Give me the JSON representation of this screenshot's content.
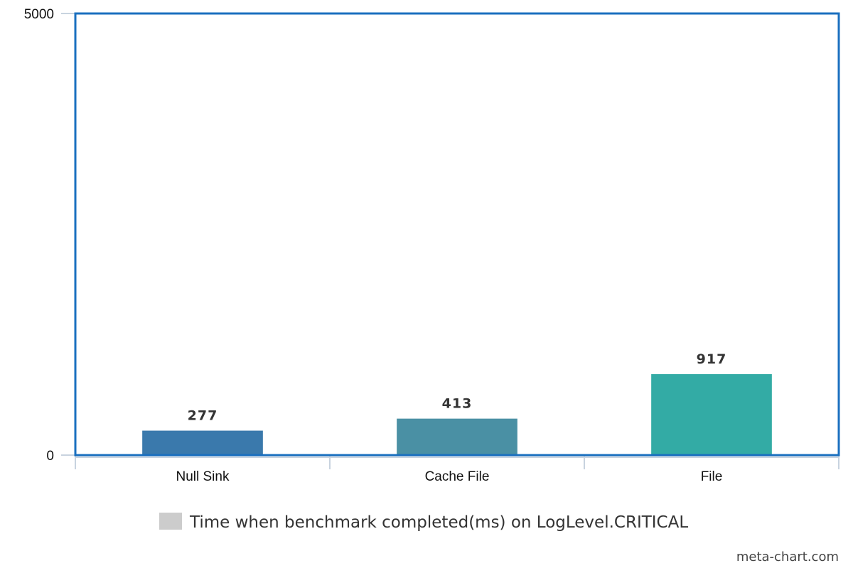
{
  "chart_data": {
    "type": "bar",
    "categories": [
      "Null Sink",
      "Cache File",
      "File"
    ],
    "series": [
      {
        "name": "Time when benchmark completed(ms) on LogLevel.CRITICAL",
        "values": [
          277,
          413,
          917
        ],
        "colors": [
          "#3a79ac",
          "#4a90a4",
          "#33aba5"
        ]
      }
    ],
    "title": "",
    "xlabel": "",
    "ylabel": "",
    "ylim": [
      0,
      5000
    ],
    "yticks": [
      "0",
      "5000"
    ],
    "grid": false,
    "legend": {
      "position": "bottom-center",
      "swatch_color": "#cccccc"
    },
    "frame_color": "#1a6fbf",
    "axis_color": "#c8d3df"
  },
  "watermark": "meta-chart.com"
}
